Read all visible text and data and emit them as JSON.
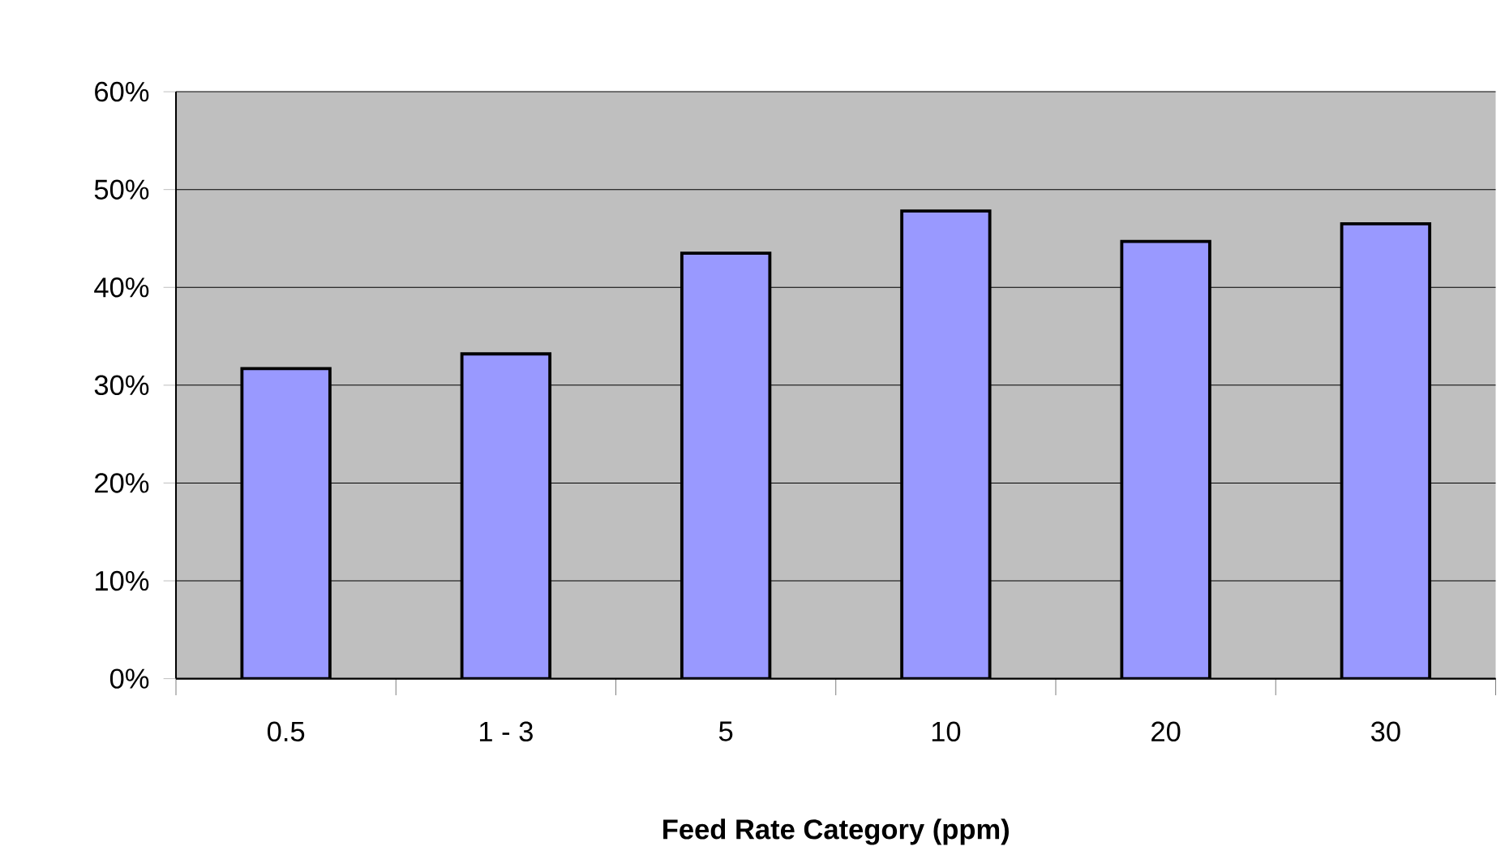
{
  "chart_data": {
    "type": "bar",
    "xlabel": "**Feed Rate Category (ppm)**",
    "categories": [
      "0.5",
      "1 - 3",
      "5",
      "10",
      "20",
      "30"
    ],
    "values": [
      31.7,
      33.2,
      43.5,
      47.8,
      44.7,
      46.5
    ],
    "color": "#9999ff",
    "ylim": [
      0,
      60
    ],
    "yticks": [
      {
        "value": 0,
        "label": "0%"
      },
      {
        "value": 10,
        "label": "10%"
      },
      {
        "value": 20,
        "label": "20%"
      },
      {
        "value": 30,
        "label": "30%"
      },
      {
        "value": 40,
        "label": "40%"
      },
      {
        "value": 50,
        "label": "50%"
      },
      {
        "value": 60,
        "label": "60%"
      }
    ],
    "grid": "y"
  }
}
